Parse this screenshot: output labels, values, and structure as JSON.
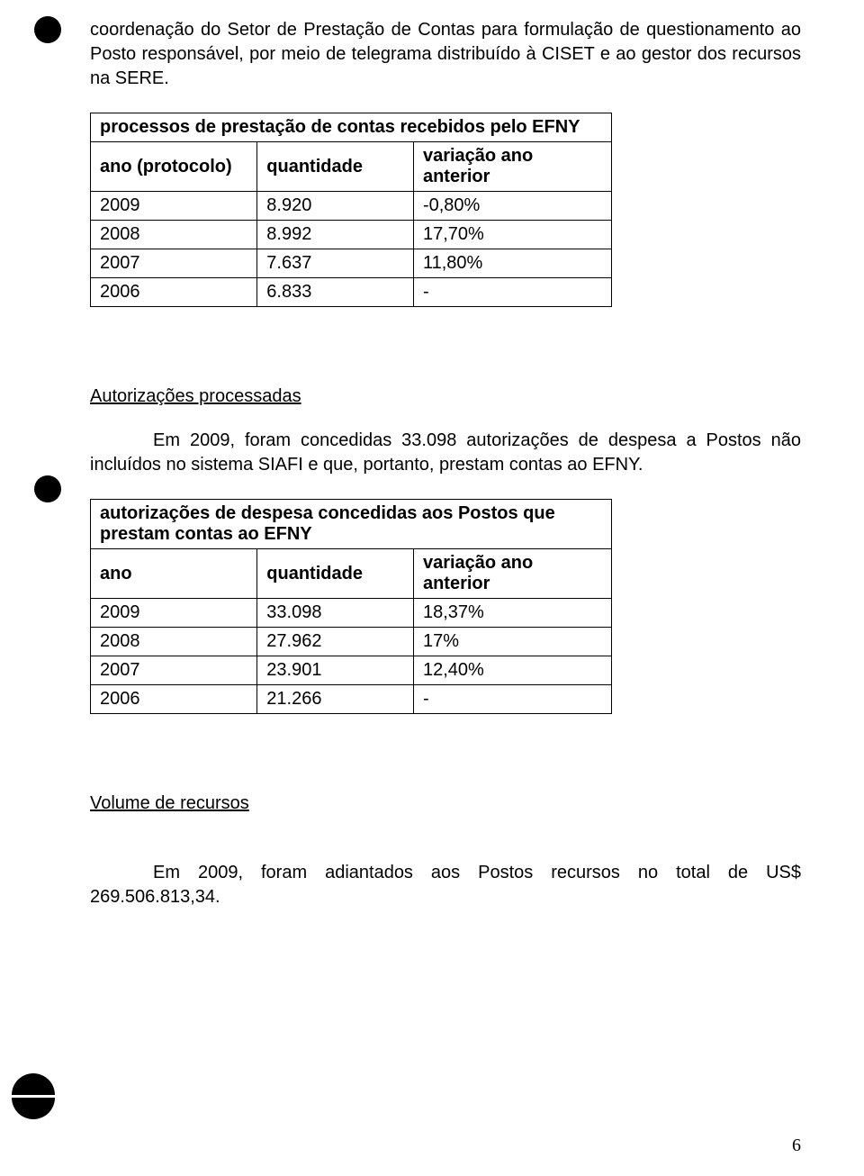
{
  "para1": "coordenação do Setor de Prestação de Contas para formulação de questionamento ao Posto responsável, por meio de telegrama distribuído à CISET e ao gestor dos recursos na SERE.",
  "table1": {
    "title": "processos de prestação de contas recebidos pelo EFNY",
    "headers": {
      "a": "ano (protocolo)",
      "b": "quantidade",
      "c": "variação ano anterior"
    },
    "rows": [
      {
        "a": "2009",
        "b": "8.920",
        "c": "-0,80%"
      },
      {
        "a": "2008",
        "b": "8.992",
        "c": "17,70%"
      },
      {
        "a": "2007",
        "b": "7.637",
        "c": "11,80%"
      },
      {
        "a": "2006",
        "b": "6.833",
        "c": "-"
      }
    ]
  },
  "section2": "Autorizações processadas",
  "para2": "Em 2009, foram concedidas 33.098 autorizações de despesa a Postos não incluídos no sistema SIAFI e que, portanto, prestam contas ao EFNY.",
  "table2": {
    "title": "autorizações de despesa concedidas aos Postos que prestam contas ao EFNY",
    "headers": {
      "a": "ano",
      "b": "quantidade",
      "c": "variação ano anterior"
    },
    "rows": [
      {
        "a": "2009",
        "b": "33.098",
        "c": "18,37%"
      },
      {
        "a": "2008",
        "b": "27.962",
        "c": "17%"
      },
      {
        "a": "2007",
        "b": "23.901",
        "c": "12,40%"
      },
      {
        "a": "2006",
        "b": "21.266",
        "c": "-"
      }
    ]
  },
  "section3": "Volume de recursos",
  "para3": "Em 2009, foram adiantados aos Postos recursos no total de US$ 269.506.813,34.",
  "pageNumber": "6"
}
